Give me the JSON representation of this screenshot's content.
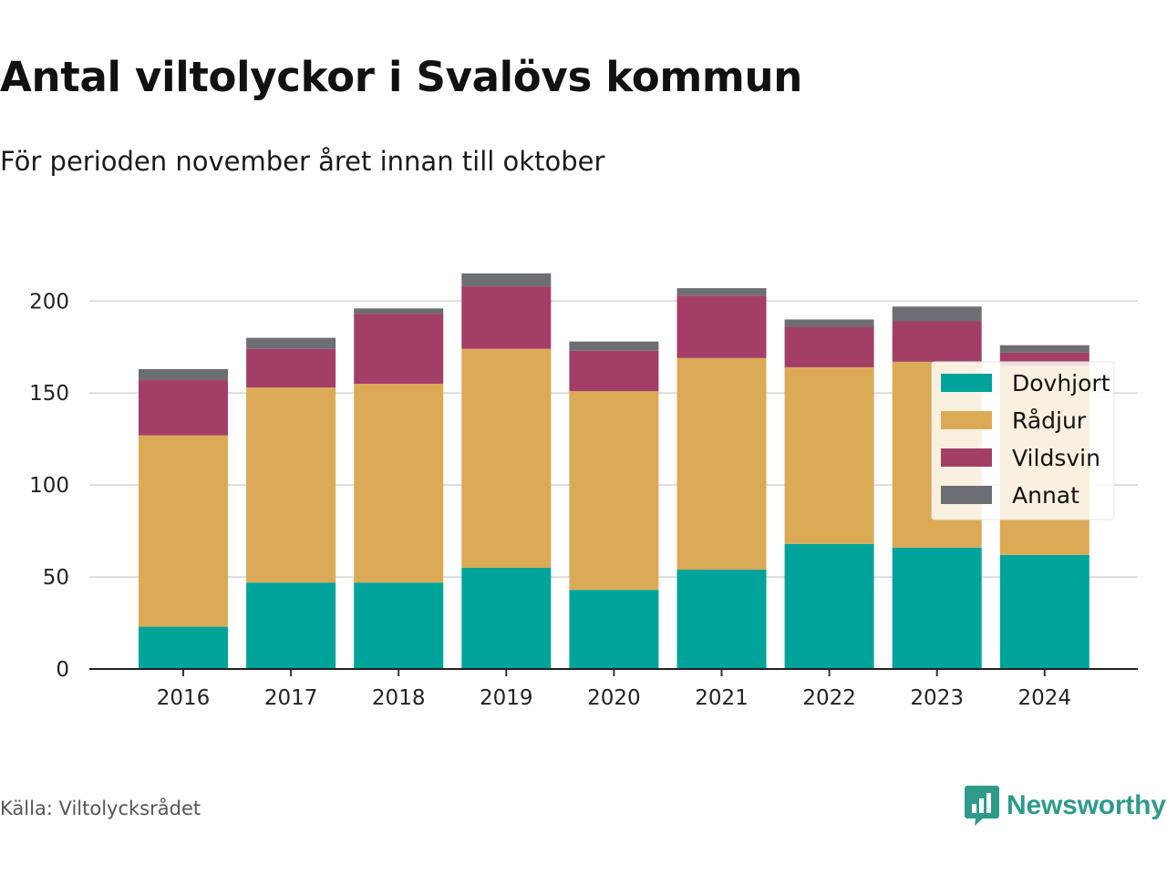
{
  "title": "Antal viltolyckor i Svalövs kommun",
  "subtitle": "För perioden november året innan till oktober",
  "source": "Källa: Viltolycksrådet",
  "brand": {
    "name": "Newsworthy",
    "color": "#2f9a8a",
    "icon": "bar-chart-speech-bubble-icon"
  },
  "chart_data": {
    "type": "bar",
    "stacked": true,
    "categories": [
      "2016",
      "2017",
      "2018",
      "2019",
      "2020",
      "2021",
      "2022",
      "2023",
      "2024"
    ],
    "series": [
      {
        "name": "Dovhjort",
        "color": "#00a39a",
        "values": [
          23,
          47,
          47,
          55,
          43,
          54,
          68,
          66,
          62
        ]
      },
      {
        "name": "Rådjur",
        "color": "#dbaa56",
        "values": [
          104,
          106,
          108,
          119,
          108,
          115,
          96,
          101,
          103
        ]
      },
      {
        "name": "Vildsvin",
        "color": "#a33f67",
        "values": [
          30,
          21,
          38,
          34,
          22,
          34,
          22,
          22,
          7
        ]
      },
      {
        "name": "Annat",
        "color": "#6d6e73",
        "values": [
          6,
          6,
          3,
          7,
          5,
          4,
          4,
          8,
          4
        ]
      }
    ],
    "ylim": [
      0,
      215
    ],
    "yticks": [
      "0",
      "50",
      "100",
      "150",
      "200"
    ],
    "grid": true,
    "legend": "right"
  }
}
